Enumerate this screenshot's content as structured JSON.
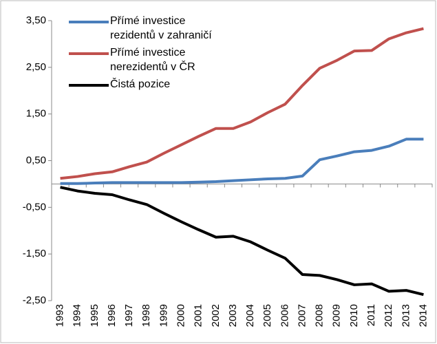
{
  "chart_data": {
    "type": "line",
    "categories": [
      "1993",
      "1994",
      "1995",
      "1996",
      "1997",
      "1998",
      "1999",
      "2000",
      "2001",
      "2002",
      "2003",
      "2004",
      "2005",
      "2006",
      "2007",
      "2008",
      "2009",
      "2010",
      "2011",
      "2012",
      "2013",
      "2014"
    ],
    "series": [
      {
        "name": "Přímé investice rezidentů v zahraničí",
        "color": "#4a7ebb",
        "values": [
          0.01,
          0.01,
          0.02,
          0.03,
          0.03,
          0.03,
          0.03,
          0.03,
          0.04,
          0.05,
          0.07,
          0.09,
          0.11,
          0.12,
          0.17,
          0.52,
          0.6,
          0.69,
          0.72,
          0.81,
          0.96,
          0.96
        ]
      },
      {
        "name": "Přímé investice nerezidentů v ČR",
        "color": "#c0504d",
        "values": [
          0.12,
          0.16,
          0.22,
          0.26,
          0.37,
          0.47,
          0.66,
          0.84,
          1.02,
          1.19,
          1.19,
          1.33,
          1.53,
          1.71,
          2.11,
          2.48,
          2.65,
          2.85,
          2.86,
          3.11,
          3.24,
          3.33
        ]
      },
      {
        "name": "Čistá pozice",
        "color": "#000000",
        "values": [
          -0.07,
          -0.15,
          -0.2,
          -0.23,
          -0.34,
          -0.44,
          -0.63,
          -0.81,
          -0.98,
          -1.14,
          -1.12,
          -1.24,
          -1.42,
          -1.59,
          -1.94,
          -1.96,
          -2.05,
          -2.16,
          -2.14,
          -2.3,
          -2.28,
          -2.37
        ]
      }
    ],
    "ylim": [
      -2.5,
      3.5
    ],
    "yticks": [
      {
        "value": -2.5,
        "label": "-2,50"
      },
      {
        "value": -1.5,
        "label": "-1,50"
      },
      {
        "value": -0.5,
        "label": "-0,50"
      },
      {
        "value": 0.5,
        "label": "0,50"
      },
      {
        "value": 1.5,
        "label": "1,50"
      },
      {
        "value": 2.5,
        "label": "2,50"
      },
      {
        "value": 3.5,
        "label": "3,50"
      }
    ],
    "legend": "upper left"
  }
}
